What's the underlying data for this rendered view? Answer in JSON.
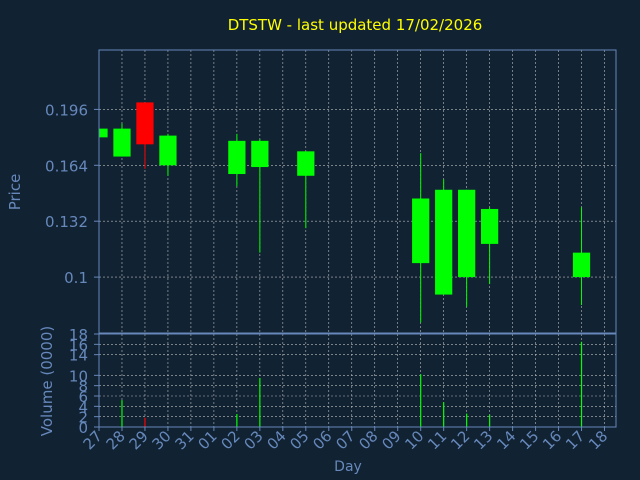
{
  "title": "DTSTW - last updated 17/02/2026",
  "colors": {
    "background": "#112233",
    "axes": "#6688bb",
    "grid": "#bbbbbb",
    "title": "#ffff00",
    "up": "#00ff00",
    "down": "#ff0000"
  },
  "chart_data": [
    {
      "type": "candlestick",
      "ylabel": "Price",
      "ylim": [
        0.068,
        0.23
      ],
      "yticks": [
        0.1,
        0.132,
        0.164,
        0.196
      ],
      "ytick_labels": [
        "0.1",
        "0.132",
        "0.164",
        "0.196"
      ],
      "grid": true,
      "candles": [
        {
          "day": "27",
          "open": 0.18,
          "high": 0.185,
          "low": 0.18,
          "close": 0.185
        },
        {
          "day": "28",
          "open": 0.169,
          "high": 0.188,
          "low": 0.169,
          "close": 0.185
        },
        {
          "day": "29",
          "open": 0.2,
          "high": 0.2,
          "low": 0.162,
          "close": 0.176
        },
        {
          "day": "30",
          "open": 0.164,
          "high": 0.182,
          "low": 0.158,
          "close": 0.181
        },
        {
          "day": "02",
          "open": 0.159,
          "high": 0.182,
          "low": 0.152,
          "close": 0.178
        },
        {
          "day": "03",
          "open": 0.163,
          "high": 0.179,
          "low": 0.114,
          "close": 0.178
        },
        {
          "day": "05",
          "open": 0.158,
          "high": 0.172,
          "low": 0.128,
          "close": 0.172
        },
        {
          "day": "10",
          "open": 0.108,
          "high": 0.171,
          "low": 0.074,
          "close": 0.145
        },
        {
          "day": "11",
          "open": 0.09,
          "high": 0.156,
          "low": 0.09,
          "close": 0.15
        },
        {
          "day": "12",
          "open": 0.1,
          "high": 0.15,
          "low": 0.083,
          "close": 0.15
        },
        {
          "day": "13",
          "open": 0.119,
          "high": 0.14,
          "low": 0.096,
          "close": 0.139
        },
        {
          "day": "17",
          "open": 0.1,
          "high": 0.14,
          "low": 0.084,
          "close": 0.114
        }
      ]
    },
    {
      "type": "bar",
      "ylabel": "Volume (0000)",
      "xlabel": "Day",
      "ylim": [
        0,
        18
      ],
      "yticks": [
        0,
        2,
        4,
        6,
        8,
        10,
        14,
        16,
        18
      ],
      "ytick_labels": [
        "0",
        "2",
        "4",
        "6",
        "8",
        "10",
        "14",
        "16",
        "18"
      ],
      "grid": true,
      "categories": [
        "27",
        "28",
        "29",
        "30",
        "31",
        "01",
        "02",
        "03",
        "04",
        "05",
        "06",
        "07",
        "08",
        "09",
        "10",
        "11",
        "12",
        "13",
        "14",
        "15",
        "16",
        "17",
        "18"
      ],
      "bars": [
        {
          "day": "28",
          "value": 5.2,
          "color": "up"
        },
        {
          "day": "29",
          "value": 1.8,
          "color": "down"
        },
        {
          "day": "02",
          "value": 2.5,
          "color": "up"
        },
        {
          "day": "03",
          "value": 9.5,
          "color": "up"
        },
        {
          "day": "10",
          "value": 10.2,
          "color": "up"
        },
        {
          "day": "11",
          "value": 4.8,
          "color": "up"
        },
        {
          "day": "12",
          "value": 2.6,
          "color": "up"
        },
        {
          "day": "13",
          "value": 2.4,
          "color": "up"
        },
        {
          "day": "17",
          "value": 16.5,
          "color": "up"
        }
      ]
    }
  ]
}
